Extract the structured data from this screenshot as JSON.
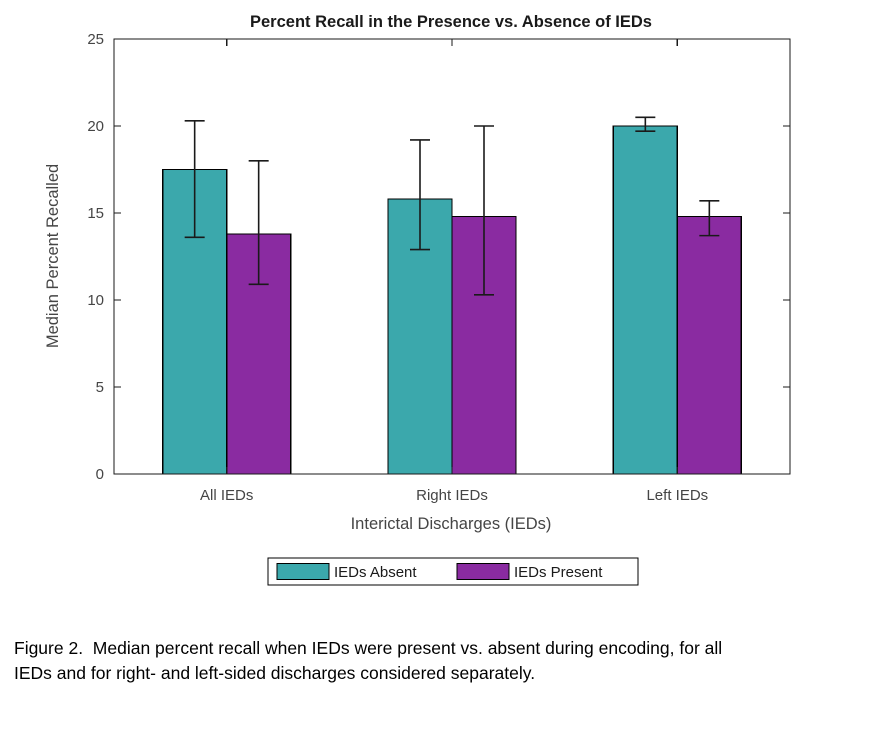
{
  "chart_data": {
    "type": "bar",
    "title": "Percent Recall in the Presence vs. Absence of IEDs",
    "xlabel": "Interictal Discharges (IEDs)",
    "ylabel": "Median Percent Recalled",
    "categories": [
      "All IEDs",
      "Right IEDs",
      "Left IEDs"
    ],
    "series": [
      {
        "name": "IEDs Absent",
        "color": "#3BA8AC",
        "values": [
          17.5,
          15.8,
          20.0
        ],
        "error_low": [
          13.6,
          12.9,
          19.7
        ],
        "error_high": [
          20.3,
          19.2,
          20.5
        ]
      },
      {
        "name": "IEDs Present",
        "color": "#8A2BA1",
        "values": [
          13.8,
          14.8,
          14.8
        ],
        "error_low": [
          10.9,
          10.3,
          13.7
        ],
        "error_high": [
          18.0,
          20.0,
          15.7
        ]
      }
    ],
    "ylim": [
      0,
      25
    ],
    "yticks": [
      0,
      5,
      10,
      15,
      20,
      25
    ],
    "grid": false,
    "legend_position": "below-axis-center",
    "bar_edge_color": "#000000",
    "error_bar_color": "#1a1a1a",
    "axis_color": "#1a1a1a",
    "tick_label_color": "#454545",
    "title_color": "#1a1a1a"
  },
  "caption": {
    "line1": "Figure 2.  Median percent recall when IEDs were present vs. absent during encoding, for all",
    "line2": "IEDs and for right- and left-sided discharges considered separately."
  }
}
